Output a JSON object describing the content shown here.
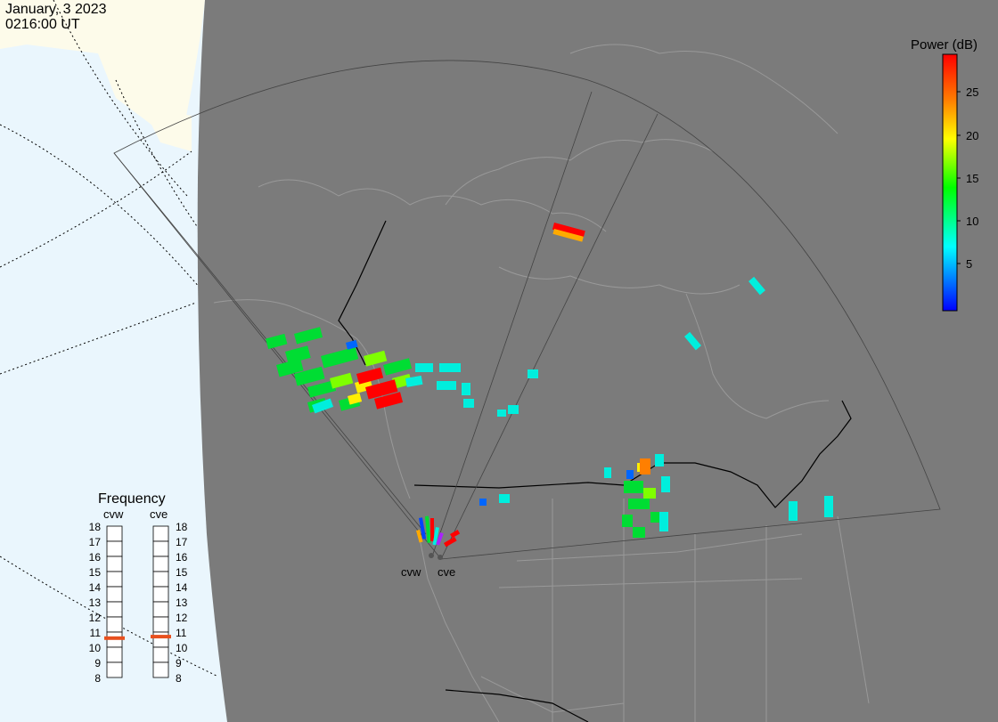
{
  "header": {
    "date": "January, 3 2023",
    "time": "0216:00 UT"
  },
  "colorbar": {
    "title": "Power (dB)",
    "ticks": [
      "25",
      "20",
      "15",
      "10",
      "5"
    ],
    "colors": [
      "#ff0000",
      "#ff7f00",
      "#ffff00",
      "#00ff00",
      "#00ffff",
      "#0000ff"
    ]
  },
  "radars": {
    "west_label": "cvw",
    "east_label": "cve"
  },
  "frequency_panel": {
    "title": "Frequency",
    "radar_a": "cvw",
    "radar_b": "cve",
    "ticks": [
      "18",
      "17",
      "16",
      "15",
      "14",
      "13",
      "12",
      "11",
      "10",
      "9",
      "8"
    ],
    "cvw_value_mhz": 10.6,
    "cve_value_mhz": 10.7,
    "marker_color": "#e8501e"
  },
  "map_colors": {
    "background_ocean": "#eaf6fd",
    "land_day": "#fdfbea",
    "night_shade": "#7b7b7b"
  }
}
